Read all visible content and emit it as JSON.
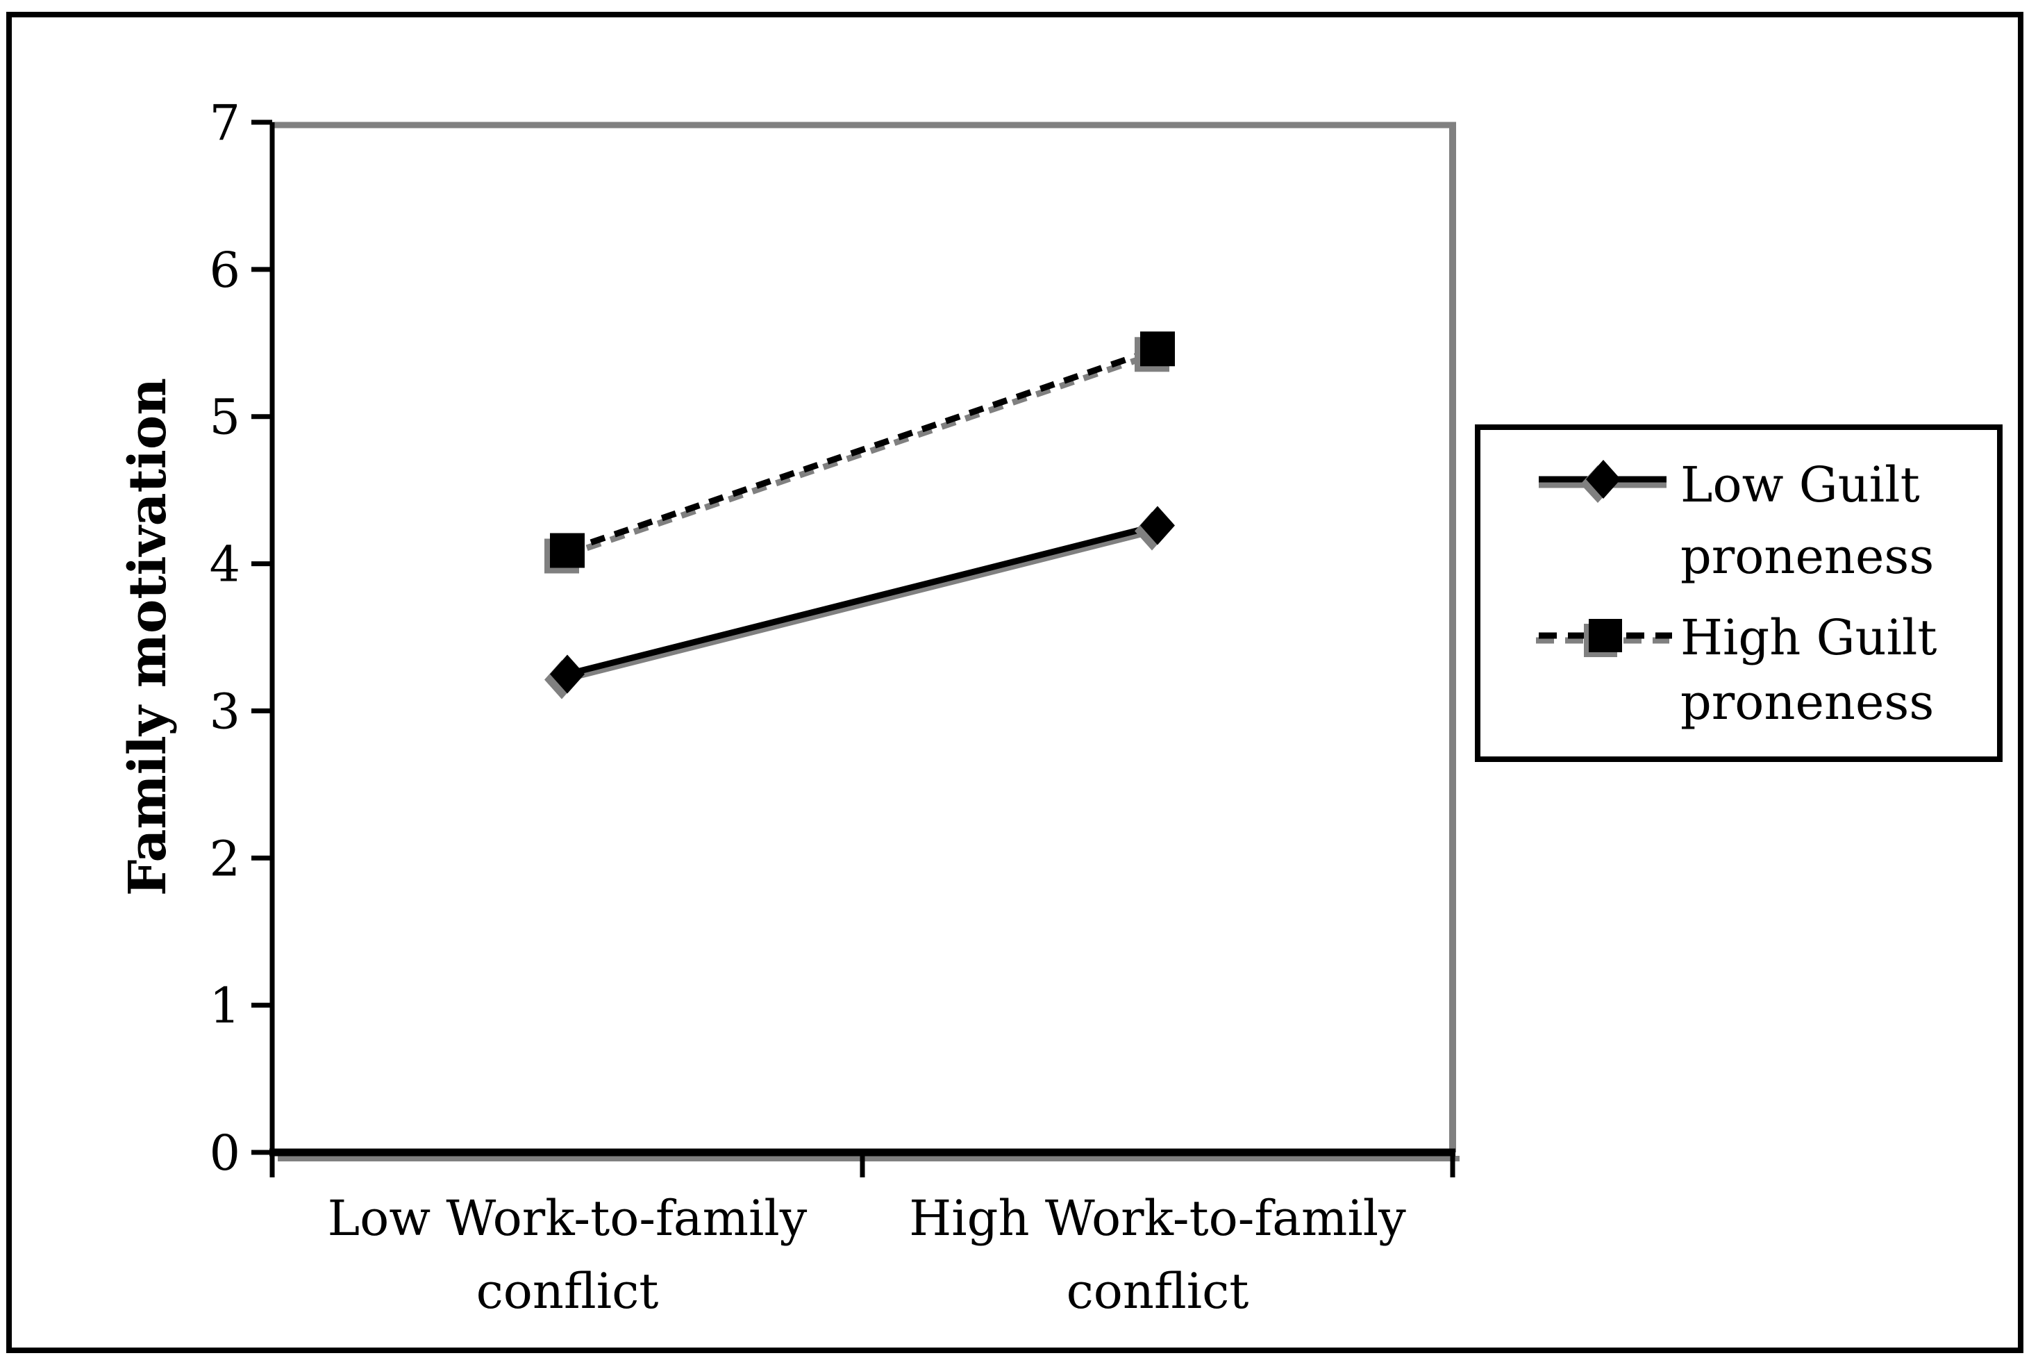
{
  "figure": {
    "background": "#ffffff",
    "border_color": "#000000",
    "frame_shadow_color": "#808080",
    "series_color": "#000000",
    "marker_shadow_color": "#808080"
  },
  "chart_data": {
    "type": "line",
    "title": "",
    "xlabel": "",
    "ylabel": "Family motivation",
    "ylim": [
      0,
      7
    ],
    "yticks": [
      0,
      1,
      2,
      3,
      4,
      5,
      6,
      7
    ],
    "grid": false,
    "legend_position": "right",
    "categories": [
      "Low Work-to-family conflict",
      "High Work-to-family conflict"
    ],
    "category_lines": [
      [
        "Low Work-to-family",
        "conflict"
      ],
      [
        "High Work-to-family",
        "conflict"
      ]
    ],
    "series": [
      {
        "name": "Low Guilt proneness",
        "name_lines": [
          "Low Guilt",
          "proneness"
        ],
        "values": [
          3.25,
          4.26
        ],
        "line_style": "solid",
        "marker": "diamond",
        "color": "#000000"
      },
      {
        "name": "High Guilt proneness",
        "name_lines": [
          "High Guilt",
          "proneness"
        ],
        "values": [
          4.09,
          5.46
        ],
        "line_style": "dashed",
        "marker": "square",
        "color": "#000000"
      }
    ]
  }
}
